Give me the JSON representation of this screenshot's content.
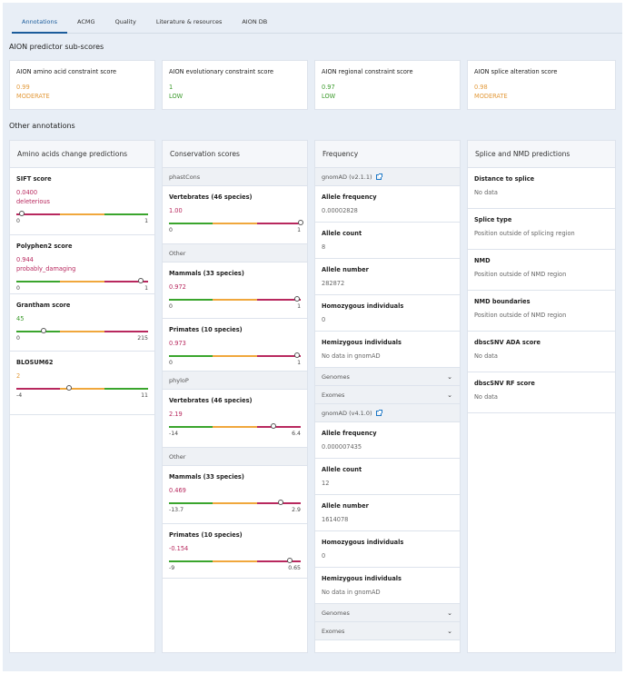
{
  "tabs": [
    "Annotations",
    "ACMG",
    "Quality",
    "Literature & resources",
    "AION DB"
  ],
  "subscores_title": "AION predictor sub-scores",
  "subscores": [
    {
      "label": "AION amino acid constraint score",
      "value": "0.99",
      "level": "MODERATE",
      "color": "#e39a3b"
    },
    {
      "label": "AION evolutionary constraint score",
      "value": "1",
      "level": "LOW",
      "color": "#3a9a2a"
    },
    {
      "label": "AION regional constraint score",
      "value": "0.97",
      "level": "LOW",
      "color": "#3a9a2a"
    },
    {
      "label": "AION splice alteration score",
      "value": "0.98",
      "level": "MODERATE",
      "color": "#e39a3b"
    }
  ],
  "other_title": "Other annotations",
  "amino": {
    "title": "Amino acids change predictions",
    "items": [
      {
        "label": "SIFT score",
        "value": "0.0400",
        "sub": "deleterious",
        "color": "#b8285e",
        "min": "0",
        "max": "1",
        "pos": 0.04
      },
      {
        "label": "Polyphen2 score",
        "value": "0.944",
        "sub": "probably_damaging",
        "color": "#b8285e",
        "min": "0",
        "max": "1",
        "pos": 0.944
      },
      {
        "label": "Grantham score",
        "value": "45",
        "color": "#3a9a2a",
        "min": "0",
        "max": "215",
        "pos": 0.21
      },
      {
        "label": "BLOSUM62",
        "value": "2",
        "color": "#e39a3b",
        "min": "-4",
        "max": "11",
        "pos": 0.4
      }
    ]
  },
  "conservation": {
    "title": "Conservation scores",
    "phastcons": "phastCons",
    "phastcons_items": [
      {
        "label": "Vertebrates (46 species)",
        "value": "1.00",
        "min": "0",
        "max": "1",
        "pos": 1.0
      }
    ],
    "other1": "Other",
    "other1_items": [
      {
        "label": "Mammals (33 species)",
        "value": "0.972",
        "min": "0",
        "max": "1",
        "pos": 0.972
      },
      {
        "label": "Primates (10 species)",
        "value": "0.973",
        "min": "0",
        "max": "1",
        "pos": 0.973
      }
    ],
    "phylop": "phyloP",
    "phylop_items": [
      {
        "label": "Vertebrates (46 species)",
        "value": "2.19",
        "min": "-14",
        "max": "6.4",
        "pos": 0.79
      }
    ],
    "other2": "Other",
    "other2_items": [
      {
        "label": "Mammals (33 species)",
        "value": "0.469",
        "min": "-13.7",
        "max": "2.9",
        "pos": 0.85
      },
      {
        "label": "Primates (10 species)",
        "value": "-0.154",
        "min": "-9",
        "max": "0.65",
        "pos": 0.92
      }
    ]
  },
  "frequency": {
    "title": "Frequency",
    "g2": "gnomAD (v2.1.1)",
    "g2_items": [
      {
        "label": "Allele frequency",
        "value": "0.00002828"
      },
      {
        "label": "Allele count",
        "value": "8"
      },
      {
        "label": "Allele number",
        "value": "282872"
      },
      {
        "label": "Homozygous individuals",
        "value": "0"
      },
      {
        "label": "Hemizygous individuals",
        "value": "No data in gnomAD"
      }
    ],
    "g2_genomes": "Genomes",
    "g2_exomes": "Exomes",
    "g4": "gnomAD (v4.1.0)",
    "g4_items": [
      {
        "label": "Allele frequency",
        "value": "0.000007435"
      },
      {
        "label": "Allele count",
        "value": "12"
      },
      {
        "label": "Allele number",
        "value": "1614078"
      },
      {
        "label": "Homozygous individuals",
        "value": "0"
      },
      {
        "label": "Hemizygous individuals",
        "value": "No data in gnomAD"
      }
    ],
    "g4_genomes": "Genomes",
    "g4_exomes": "Exomes"
  },
  "splice": {
    "title": "Splice and NMD predictions",
    "items": [
      {
        "label": "Distance to splice",
        "value": "No data"
      },
      {
        "label": "Splice type",
        "value": "Position outside of splicing region"
      },
      {
        "label": "NMD",
        "value": "Position outside of NMD region"
      },
      {
        "label": "NMD boundaries",
        "value": "Position outside of NMD region"
      },
      {
        "label": "dbscSNV ADA score",
        "value": "No data"
      },
      {
        "label": "dbscSNV RF score",
        "value": "No data"
      }
    ]
  }
}
